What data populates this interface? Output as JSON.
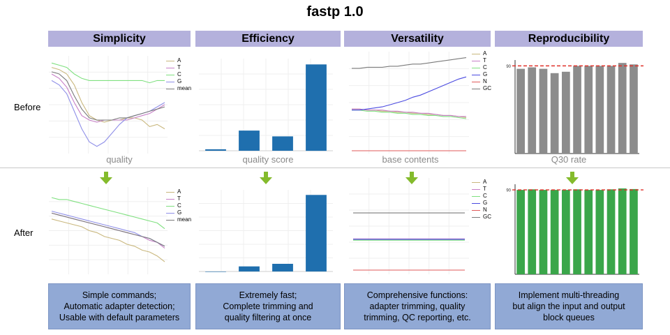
{
  "title": "fastp 1.0",
  "rows": {
    "before": "Before",
    "after": "After"
  },
  "columns": [
    {
      "header": "Simplicity",
      "caption": "quality",
      "description": "Simple commands;\nAutomatic adapter detection;\nUsable with default parameters"
    },
    {
      "header": "Efficiency",
      "caption": "quality score",
      "description": "Extremely fast;\nComplete trimming and\nquality filtering at once"
    },
    {
      "header": "Versatility",
      "caption": "base contents",
      "description": "Comprehensive functions:\nadapter trimming, quality\ntrimming, QC reporting, etc."
    },
    {
      "header": "Reproducibility",
      "caption": "Q30 rate",
      "description": "Implement multi-threading\nbut align the input and output\nblock queues"
    }
  ],
  "colors": {
    "header_bg": "#b4b1dc",
    "desc_bg": "#91a9d5",
    "arrow": "#84bb2c",
    "bar_blue": "#1f6fae",
    "bar_gray": "#8c8c8c",
    "bar_green": "#3aa64a",
    "threshold": "#e0312a"
  },
  "legends": {
    "quality": [
      {
        "label": "A",
        "color": "#c9b77d"
      },
      {
        "label": "T",
        "color": "#c77fc7"
      },
      {
        "label": "C",
        "color": "#7fe07f"
      },
      {
        "label": "G",
        "color": "#8f8fe8"
      },
      {
        "label": "mean",
        "color": "#7a7a7a"
      }
    ],
    "base_contents": [
      {
        "label": "A",
        "color": "#c9b77d"
      },
      {
        "label": "T",
        "color": "#c77fc7"
      },
      {
        "label": "C",
        "color": "#7fe07f"
      },
      {
        "label": "G",
        "color": "#4a4ae0"
      },
      {
        "label": "N",
        "color": "#e05a5a"
      },
      {
        "label": "GC",
        "color": "#7a7a7a"
      }
    ]
  },
  "chart_data": [
    {
      "type": "line",
      "panel": "quality-before",
      "x": [
        1,
        2,
        3,
        4,
        5,
        6,
        7,
        8,
        9,
        10,
        11,
        12,
        13,
        14,
        15,
        16
      ],
      "series": [
        {
          "name": "A",
          "values": [
            36,
            35,
            33,
            28,
            20,
            14,
            12,
            11,
            12,
            12,
            13,
            13,
            12,
            9,
            10,
            8
          ]
        },
        {
          "name": "T",
          "values": [
            33,
            31,
            27,
            20,
            14,
            12,
            11,
            12,
            12,
            12,
            12,
            13,
            14,
            15,
            17,
            19
          ]
        },
        {
          "name": "C",
          "values": [
            38,
            37,
            36,
            33,
            31,
            30,
            30,
            30,
            30,
            30,
            30,
            30,
            30,
            29,
            30,
            30
          ]
        },
        {
          "name": "G",
          "values": [
            30,
            28,
            24,
            16,
            8,
            2,
            0,
            2,
            6,
            10,
            13,
            14,
            15,
            16,
            18,
            20
          ]
        },
        {
          "name": "mean",
          "values": [
            34,
            33,
            30,
            23,
            17,
            13,
            12,
            12,
            12,
            13,
            13,
            14,
            15,
            16,
            17,
            18
          ]
        }
      ]
    },
    {
      "type": "bar",
      "panel": "quality-score-before",
      "categories": [
        "1",
        "2",
        "3",
        "4"
      ],
      "values": [
        1,
        14,
        10,
        60
      ]
    },
    {
      "type": "line",
      "panel": "base-contents-before",
      "x": [
        1,
        2,
        3,
        4,
        5,
        6,
        7,
        8,
        9,
        10,
        11,
        12,
        13,
        14,
        15,
        16
      ],
      "series": [
        {
          "name": "A",
          "values": [
            39,
            39,
            38,
            38,
            37,
            37,
            36,
            36,
            35,
            35,
            34,
            34,
            33,
            33,
            32,
            31
          ]
        },
        {
          "name": "T",
          "values": [
            39,
            39,
            38,
            38,
            38,
            37,
            37,
            36,
            36,
            35,
            35,
            34,
            33,
            33,
            32,
            32
          ]
        },
        {
          "name": "C",
          "values": [
            38,
            38,
            37,
            37,
            36,
            36,
            35,
            35,
            34,
            34,
            33,
            33,
            32,
            32,
            31,
            30
          ]
        },
        {
          "name": "G",
          "values": [
            38,
            38,
            39,
            40,
            41,
            43,
            45,
            47,
            50,
            52,
            55,
            58,
            61,
            64,
            67,
            69
          ]
        },
        {
          "name": "N",
          "values": [
            0,
            0,
            0,
            0,
            0,
            0,
            0,
            0,
            0,
            0,
            0,
            0,
            0,
            0,
            0,
            0
          ]
        },
        {
          "name": "GC",
          "values": [
            77,
            77,
            78,
            78,
            78,
            79,
            79,
            80,
            81,
            81,
            82,
            83,
            84,
            85,
            86,
            87
          ]
        }
      ]
    },
    {
      "type": "bar",
      "panel": "q30-before",
      "categories": [
        "1",
        "2",
        "3",
        "4",
        "5",
        "6",
        "7",
        "8",
        "9",
        "10",
        "11"
      ],
      "values": [
        89,
        89.5,
        89,
        87.5,
        88,
        90,
        90,
        90,
        90,
        91,
        90.5
      ],
      "reference_line": 90
    },
    {
      "type": "line",
      "panel": "quality-after",
      "x": [
        1,
        2,
        3,
        4,
        5,
        6,
        7,
        8,
        9,
        10,
        11,
        12,
        13,
        14,
        15,
        16
      ],
      "series": [
        {
          "name": "A",
          "values": [
            27,
            26,
            25,
            24,
            23,
            21,
            20,
            18,
            17,
            16,
            14,
            13,
            11,
            10,
            8,
            5
          ]
        },
        {
          "name": "T",
          "values": [
            30,
            29,
            28,
            27,
            26,
            25,
            24,
            23,
            22,
            21,
            20,
            19,
            18,
            16,
            15,
            12
          ]
        },
        {
          "name": "C",
          "values": [
            38,
            37,
            37,
            36,
            35,
            34,
            33,
            32,
            31,
            30,
            29,
            28,
            27,
            26,
            25,
            22
          ]
        },
        {
          "name": "G",
          "values": [
            31,
            30,
            29,
            28,
            27,
            26,
            25,
            24,
            23,
            22,
            21,
            20,
            18,
            17,
            15,
            13
          ]
        },
        {
          "name": "mean",
          "values": [
            30,
            29,
            28,
            27,
            26,
            25,
            24,
            23,
            22,
            21,
            20,
            19,
            18,
            17,
            15,
            13
          ]
        }
      ]
    },
    {
      "type": "bar",
      "panel": "quality-score-after",
      "categories": [
        "1",
        "2",
        "3",
        "4"
      ],
      "values": [
        0,
        4,
        6,
        60
      ]
    },
    {
      "type": "line",
      "panel": "base-contents-after",
      "x": [
        1,
        2,
        3,
        4,
        5,
        6,
        7,
        8,
        9,
        10,
        11,
        12,
        13,
        14,
        15,
        16
      ],
      "series": [
        {
          "name": "A",
          "values": [
            35,
            35,
            35,
            35,
            35,
            35,
            35,
            35,
            35,
            35,
            35,
            35,
            35,
            35,
            35,
            35
          ]
        },
        {
          "name": "T",
          "values": [
            35.5,
            35.5,
            35.5,
            35.5,
            35.5,
            35.5,
            35.5,
            35.5,
            35.5,
            35.5,
            35.5,
            35.5,
            35.5,
            35.5,
            35.5,
            35.5
          ]
        },
        {
          "name": "C",
          "values": [
            34,
            34,
            34,
            34,
            34,
            34,
            34,
            34,
            34,
            34,
            34,
            34,
            34,
            34,
            34,
            34
          ]
        },
        {
          "name": "G",
          "values": [
            35,
            35,
            35,
            35,
            35,
            35,
            35,
            35,
            35,
            35,
            35,
            35,
            35,
            35,
            35,
            35
          ]
        },
        {
          "name": "N",
          "values": [
            0,
            0,
            0,
            0,
            0,
            0,
            0,
            0,
            0,
            0,
            0,
            0,
            0,
            0,
            0,
            0
          ]
        },
        {
          "name": "GC",
          "values": [
            65,
            65,
            65,
            65,
            65,
            65,
            65,
            65,
            65,
            65,
            65,
            65,
            65,
            65,
            65,
            65
          ]
        }
      ]
    },
    {
      "type": "bar",
      "panel": "q30-after",
      "categories": [
        "1",
        "2",
        "3",
        "4",
        "5",
        "6",
        "7",
        "8",
        "9",
        "10",
        "11"
      ],
      "values": [
        90,
        90.2,
        90,
        90,
        90,
        90.2,
        90,
        90,
        90.2,
        90.5,
        90.3
      ],
      "reference_line": 90
    }
  ],
  "q30_tick": "90"
}
